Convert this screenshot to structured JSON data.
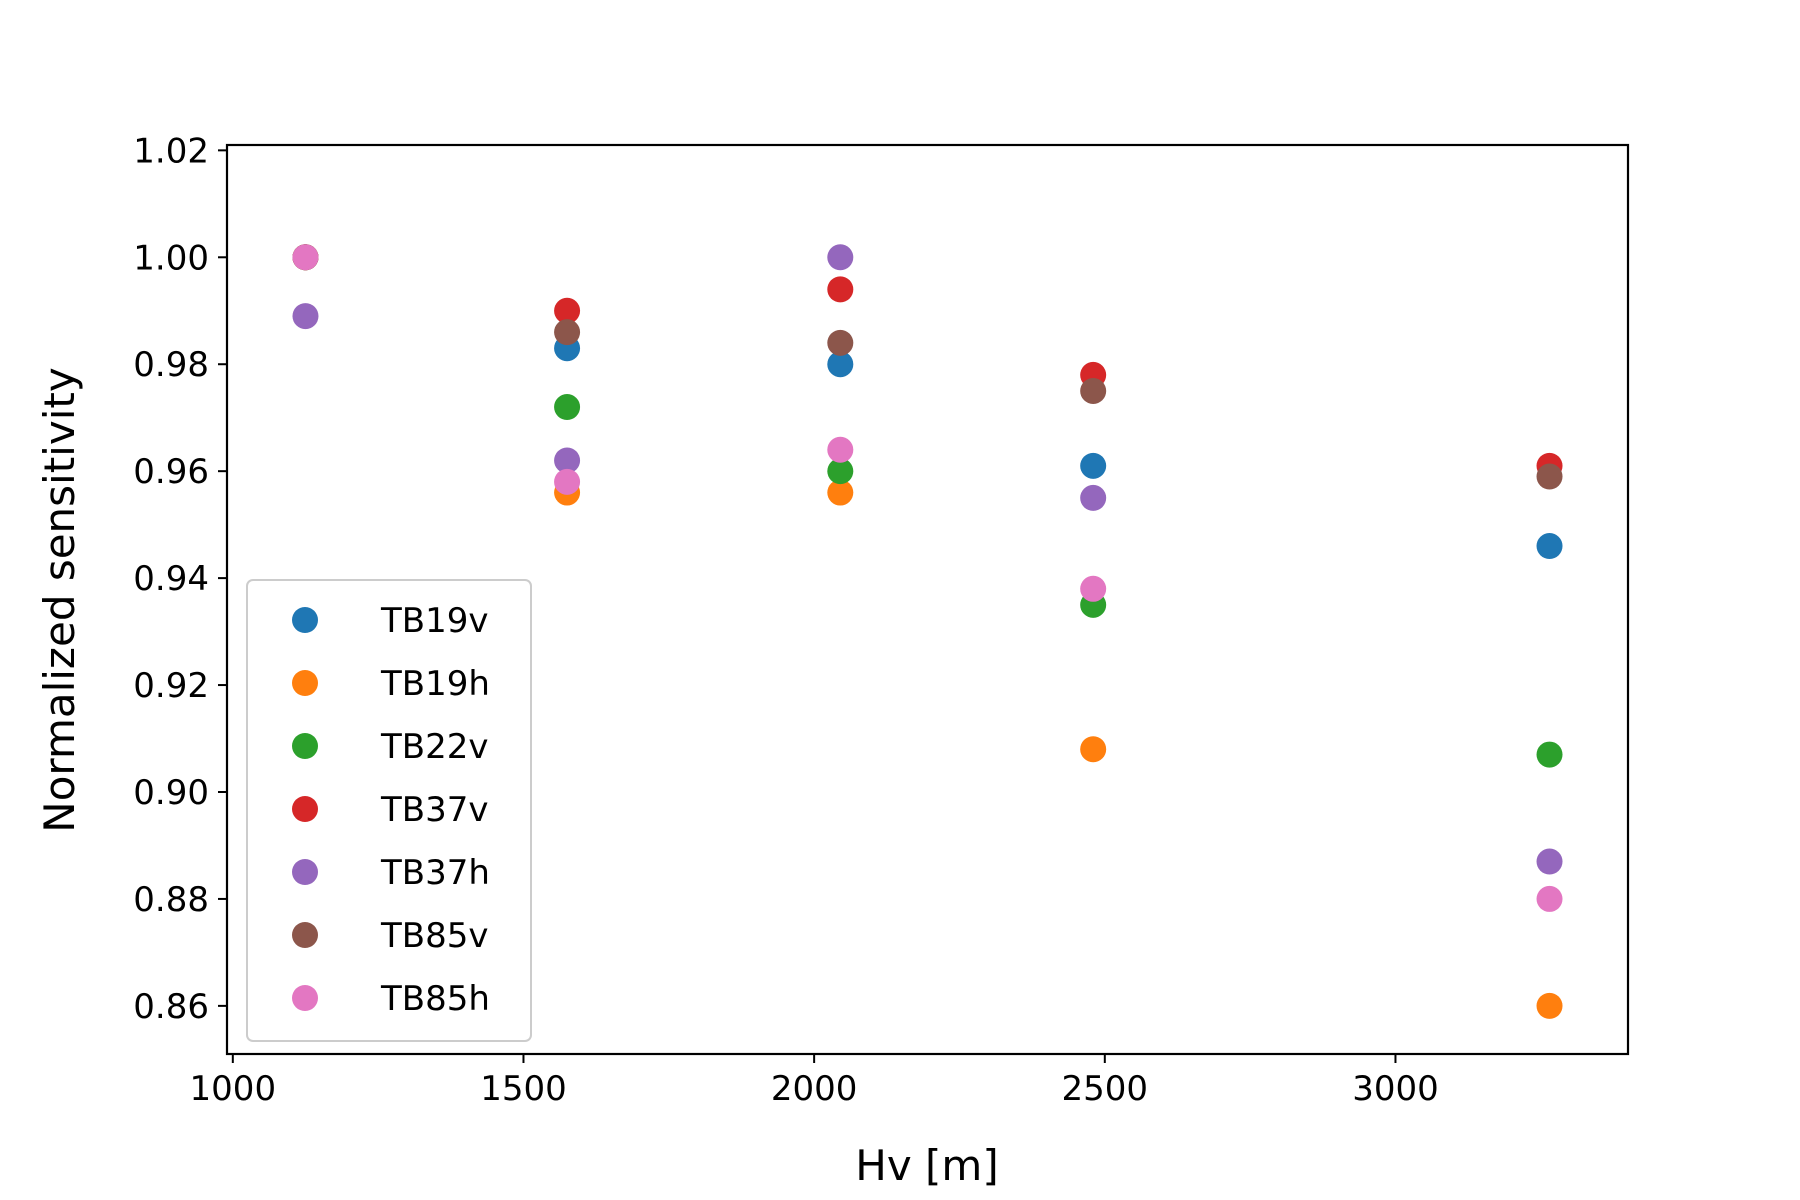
{
  "chart_data": {
    "type": "scatter",
    "title": "",
    "xlabel": "Hv [m]",
    "ylabel": "Normalized sensitivity",
    "xlim": [
      990,
      3400
    ],
    "ylim": [
      0.851,
      1.021
    ],
    "xticks": [
      1000,
      1500,
      2000,
      2500,
      3000
    ],
    "xtick_labels": [
      "1000",
      "1500",
      "2000",
      "2500",
      "3000"
    ],
    "yticks": [
      0.86,
      0.88,
      0.9,
      0.92,
      0.94,
      0.96,
      0.98,
      1.0,
      1.02
    ],
    "ytick_labels": [
      "0.86",
      "0.88",
      "0.90",
      "0.92",
      "0.94",
      "0.96",
      "0.98",
      "1.00",
      "1.02"
    ],
    "grid": false,
    "legend_position": "lower-left",
    "x": [
      1125,
      1575,
      2045,
      2480,
      3265
    ],
    "series": [
      {
        "name": "TB19v",
        "color": "#1f77b4",
        "values": [
          1.0,
          0.983,
          0.98,
          0.961,
          0.946
        ]
      },
      {
        "name": "TB19h",
        "color": "#ff7f0e",
        "values": [
          1.0,
          0.956,
          0.956,
          0.908,
          0.86
        ]
      },
      {
        "name": "TB22v",
        "color": "#2ca02c",
        "values": [
          1.0,
          0.972,
          0.96,
          0.935,
          0.907
        ]
      },
      {
        "name": "TB37v",
        "color": "#d62728",
        "values": [
          1.0,
          0.99,
          0.994,
          0.978,
          0.961
        ]
      },
      {
        "name": "TB37h",
        "color": "#9467bd",
        "values": [
          0.989,
          0.962,
          1.0,
          0.955,
          0.887
        ]
      },
      {
        "name": "TB85v",
        "color": "#8c564b",
        "values": [
          1.0,
          0.986,
          0.984,
          0.975,
          0.959
        ]
      },
      {
        "name": "TB85h",
        "color": "#e377c2",
        "values": [
          1.0,
          0.958,
          0.964,
          0.938,
          0.88
        ]
      }
    ]
  }
}
